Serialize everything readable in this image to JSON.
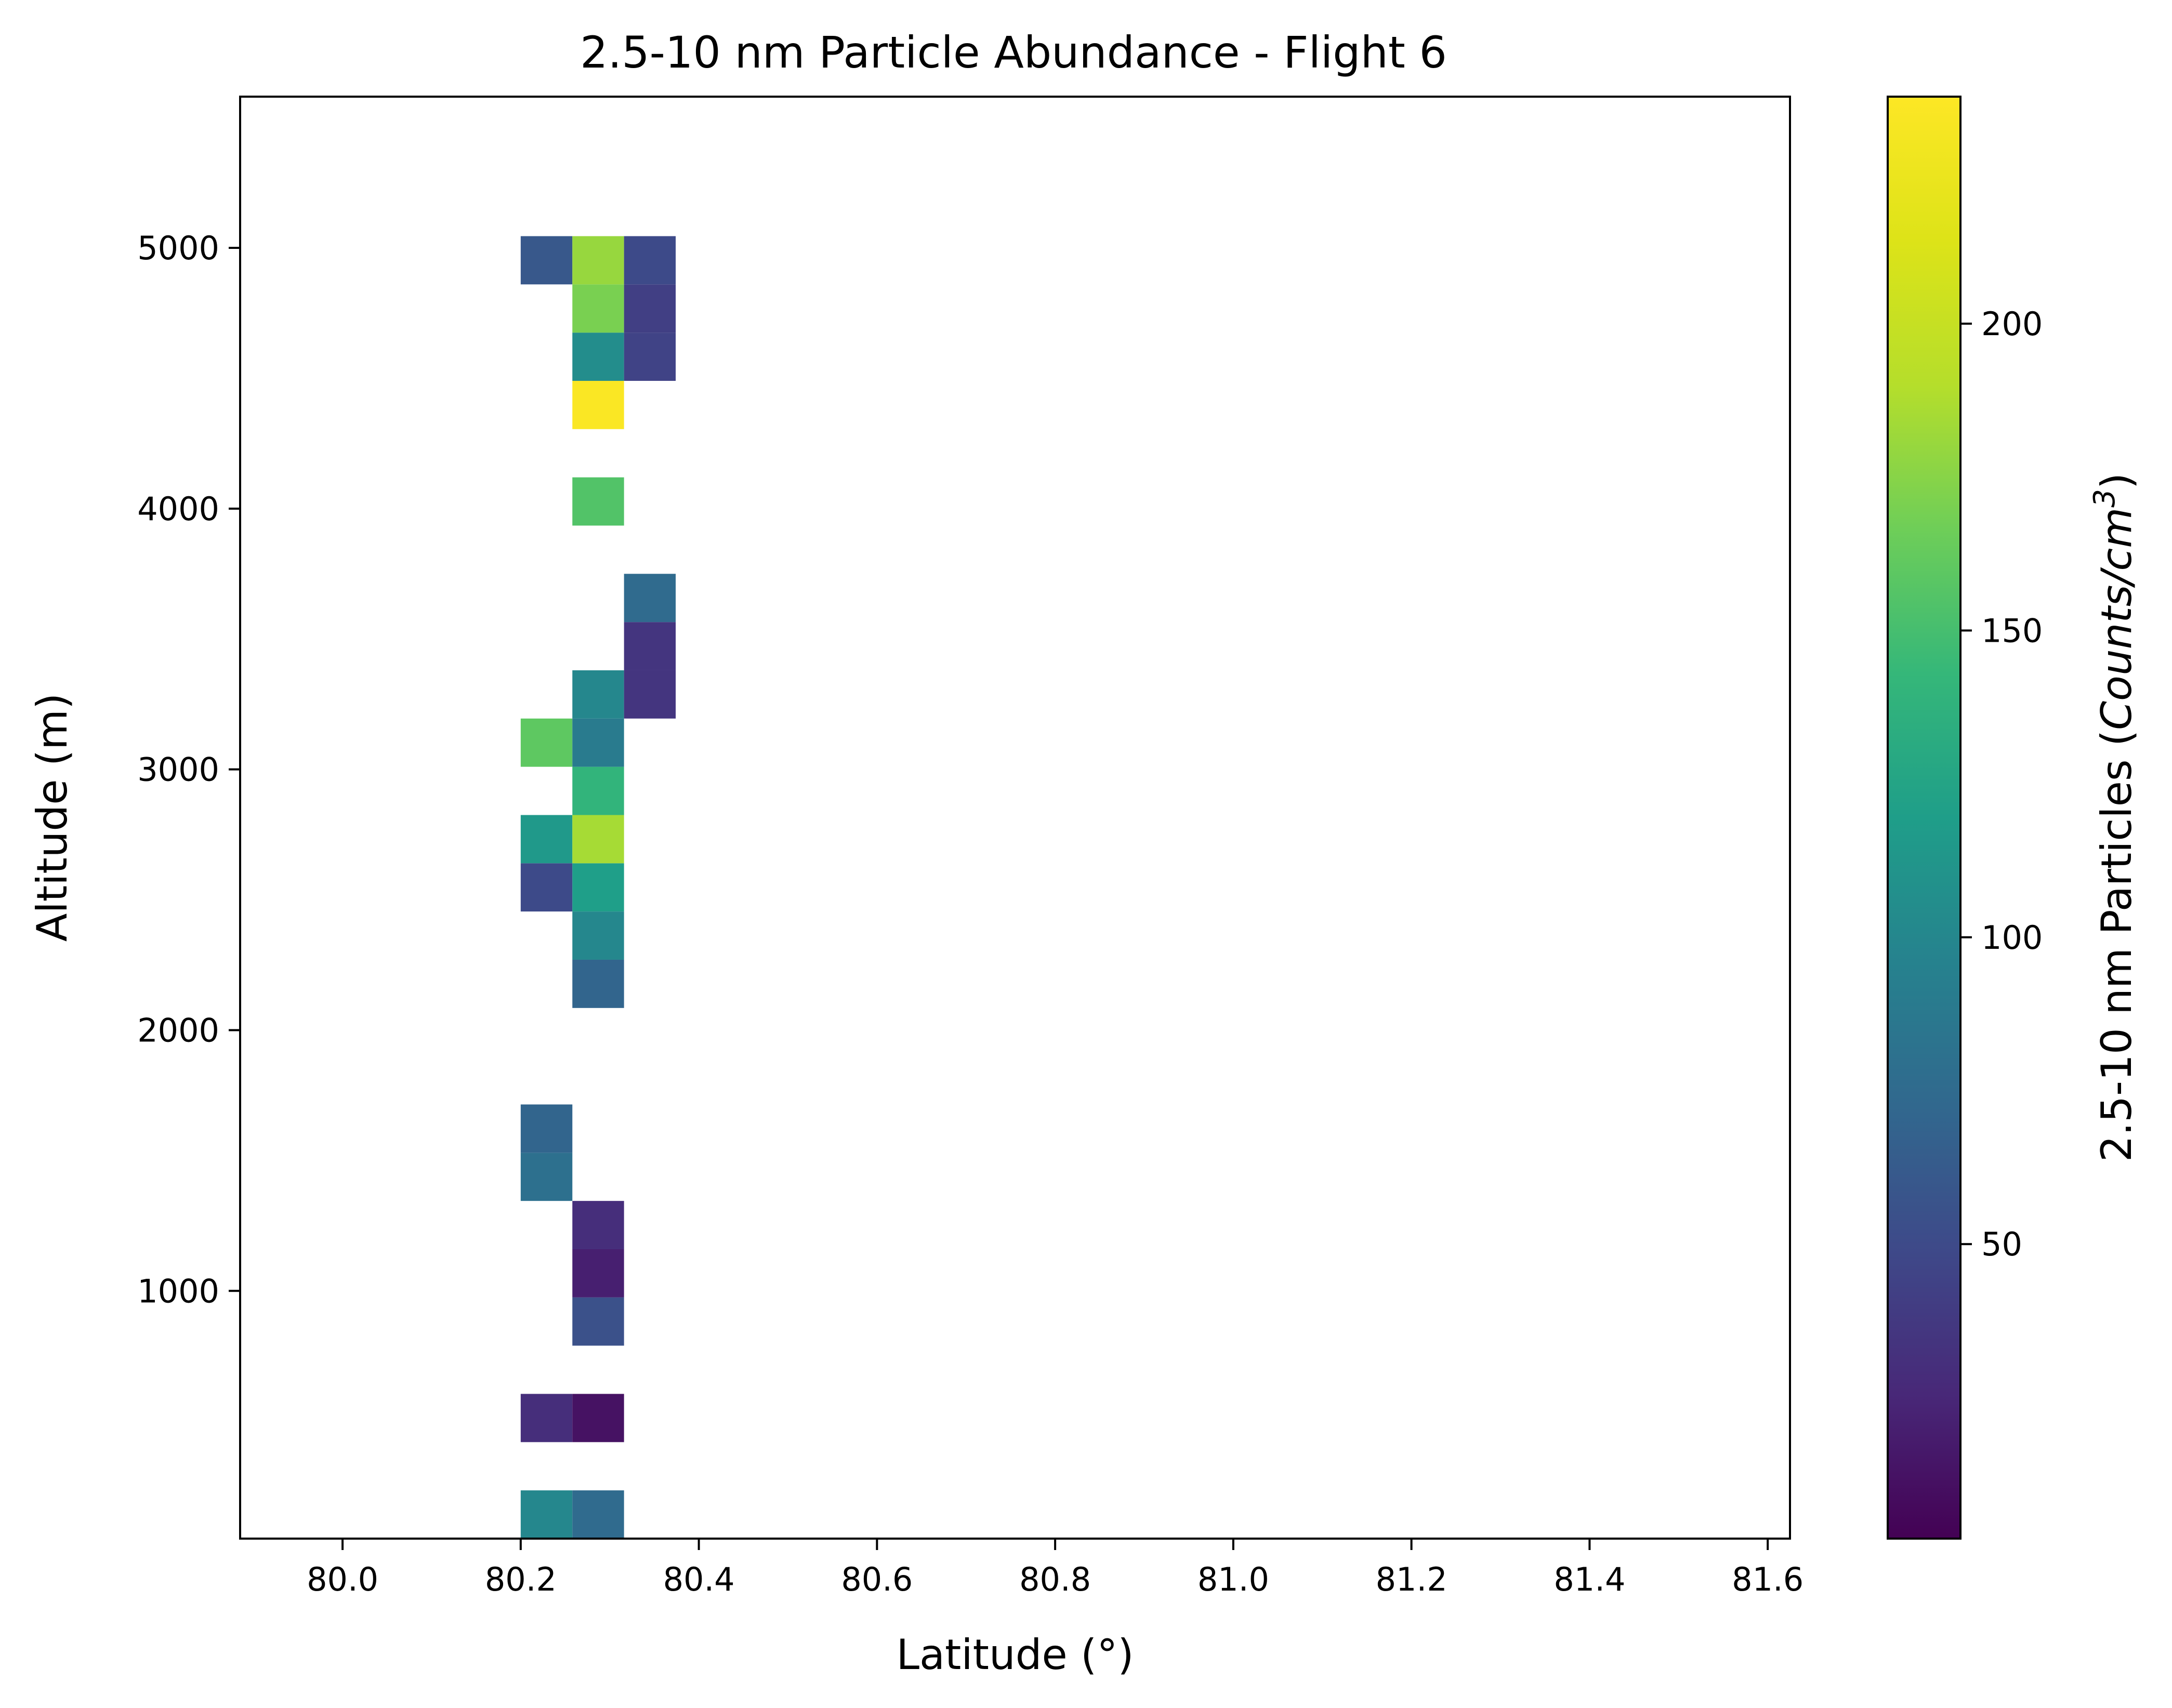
{
  "chart_data": {
    "type": "heatmap",
    "title": "2.5-10 nm Particle Abundance - Flight 6",
    "xlabel": "Latitude (°)",
    "ylabel": "Altitude (m)",
    "colorbar_label": "2.5-10 nm Particles (Counts/cm³)",
    "colorbar_label_parts": {
      "plain": "2.5-10 nm Particles (",
      "italic": "Counts/cm",
      "superscript": "3",
      "close": ")"
    },
    "colormap": "viridis",
    "xlim": [
      79.885,
      81.625
    ],
    "ylim": [
      50,
      5580
    ],
    "xticks": [
      "80.0",
      "80.2",
      "80.4",
      "80.6",
      "80.8",
      "81.0",
      "81.2",
      "81.4",
      "81.6"
    ],
    "yticks": [
      "1000",
      "2000",
      "3000",
      "4000",
      "5000"
    ],
    "colorbar_range": [
      2,
      237
    ],
    "colorbar_ticks": [
      "50",
      "100",
      "150",
      "200"
    ],
    "bin_width_lat": 0.058,
    "bin_height_alt": 185,
    "cells": [
      {
        "lat": 80.2,
        "alt": 50,
        "value": 100
      },
      {
        "lat": 80.258,
        "alt": 50,
        "value": 75
      },
      {
        "lat": 80.2,
        "alt": 420,
        "value": 30
      },
      {
        "lat": 80.258,
        "alt": 420,
        "value": 12
      },
      {
        "lat": 80.258,
        "alt": 790,
        "value": 55
      },
      {
        "lat": 80.258,
        "alt": 975,
        "value": 20
      },
      {
        "lat": 80.258,
        "alt": 1160,
        "value": 30
      },
      {
        "lat": 80.2,
        "alt": 1345,
        "value": 80
      },
      {
        "lat": 80.2,
        "alt": 1530,
        "value": 70
      },
      {
        "lat": 80.258,
        "alt": 2085,
        "value": 70
      },
      {
        "lat": 80.258,
        "alt": 2270,
        "value": 100
      },
      {
        "lat": 80.2,
        "alt": 2455,
        "value": 50
      },
      {
        "lat": 80.258,
        "alt": 2455,
        "value": 120
      },
      {
        "lat": 80.2,
        "alt": 2640,
        "value": 115
      },
      {
        "lat": 80.258,
        "alt": 2640,
        "value": 185
      },
      {
        "lat": 80.258,
        "alt": 2825,
        "value": 140
      },
      {
        "lat": 80.2,
        "alt": 3010,
        "value": 160
      },
      {
        "lat": 80.258,
        "alt": 3010,
        "value": 90
      },
      {
        "lat": 80.258,
        "alt": 3195,
        "value": 100
      },
      {
        "lat": 80.316,
        "alt": 3195,
        "value": 35
      },
      {
        "lat": 80.316,
        "alt": 3380,
        "value": 35
      },
      {
        "lat": 80.316,
        "alt": 3565,
        "value": 75
      },
      {
        "lat": 80.258,
        "alt": 3935,
        "value": 155
      },
      {
        "lat": 80.258,
        "alt": 4305,
        "value": 235
      },
      {
        "lat": 80.258,
        "alt": 4490,
        "value": 105
      },
      {
        "lat": 80.316,
        "alt": 4490,
        "value": 45
      },
      {
        "lat": 80.258,
        "alt": 4675,
        "value": 170
      },
      {
        "lat": 80.316,
        "alt": 4675,
        "value": 42
      },
      {
        "lat": 80.2,
        "alt": 4860,
        "value": 60
      },
      {
        "lat": 80.258,
        "alt": 4860,
        "value": 180
      },
      {
        "lat": 80.316,
        "alt": 4860,
        "value": 50
      }
    ]
  }
}
